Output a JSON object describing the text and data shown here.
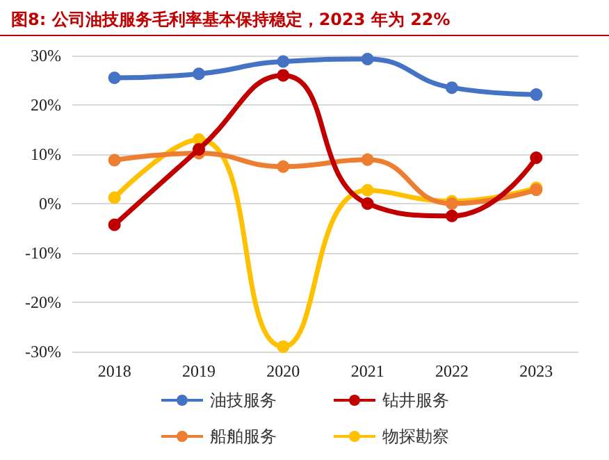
{
  "chart_data": {
    "type": "line",
    "title": "图8:   公司油技服务毛利率基本保持稳定，2023 年为 22%",
    "categories": [
      "2018",
      "2019",
      "2020",
      "2021",
      "2022",
      "2023"
    ],
    "series": [
      {
        "name": "油技服务",
        "color": "#4472c4",
        "values": [
          25.5,
          26.3,
          28.8,
          29.3,
          23.5,
          22.1
        ]
      },
      {
        "name": "钻井服务",
        "color": "#c00000",
        "values": [
          -4.3,
          11,
          26,
          0,
          -2.5,
          9.3
        ]
      },
      {
        "name": "船舶服务",
        "color": "#ed7d31",
        "values": [
          8.8,
          10.2,
          7.5,
          8.9,
          0,
          2.8
        ]
      },
      {
        "name": "物探勘察",
        "color": "#ffc000",
        "values": [
          1.2,
          13,
          -29,
          2.7,
          0.5,
          3.2
        ]
      }
    ],
    "ylim": [
      -30,
      30
    ],
    "yticks": [
      {
        "value": -30,
        "label": "-30%"
      },
      {
        "value": -20,
        "label": "-20%"
      },
      {
        "value": -10,
        "label": "-10%"
      },
      {
        "value": 0,
        "label": "0%"
      },
      {
        "value": 10,
        "label": "10%"
      },
      {
        "value": 20,
        "label": "20%"
      },
      {
        "value": 30,
        "label": "30%"
      }
    ],
    "grid": "y",
    "legend": "bottom",
    "marker": "circle",
    "line_style": "solid"
  }
}
